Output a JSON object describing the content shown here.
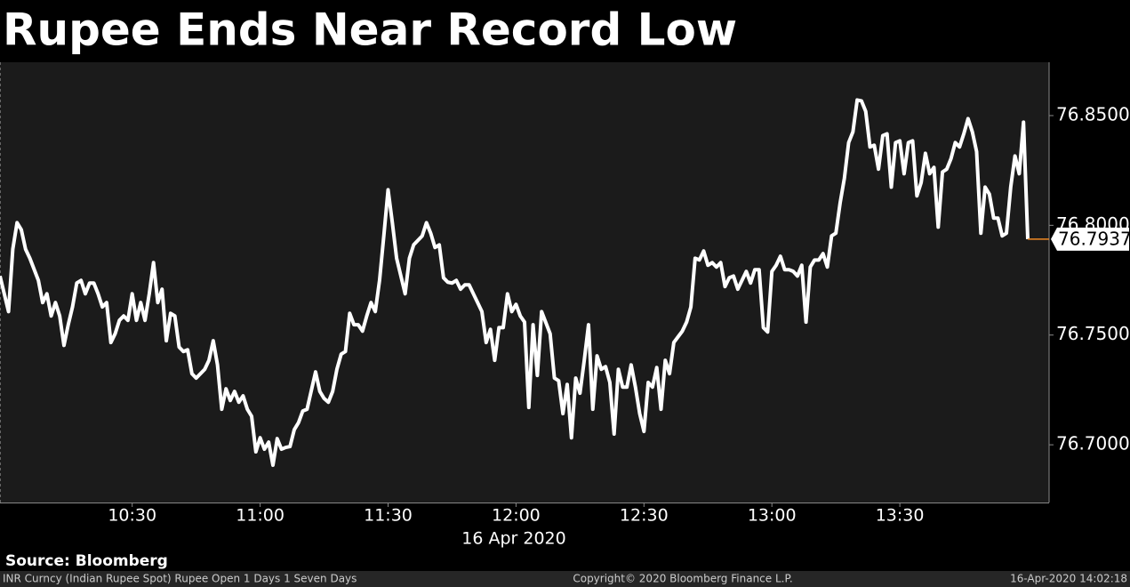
{
  "chart_data": {
    "type": "line",
    "title": "Rupee Ends Near Record Low",
    "xlabel": "16 Apr 2020",
    "source": "Source: Bloomberg",
    "footer": {
      "left": "INR Curncy (Indian Rupee Spot) Rupee Open 1 Days 1 Seven Days",
      "center": "Copyright© 2020 Bloomberg Finance L.P.",
      "right": "16-Apr-2020 14:02:18"
    },
    "color": "#ffffff",
    "last_value_color": "#f08a24",
    "x": [
      "09:59",
      "10:01",
      "10:02",
      "10:03",
      "10:04",
      "10:05",
      "10:06",
      "10:08",
      "10:09",
      "10:10",
      "10:11",
      "10:12",
      "10:13",
      "10:14",
      "10:15",
      "10:16",
      "10:17",
      "10:18",
      "10:19",
      "10:20",
      "10:21",
      "10:22",
      "10:23",
      "10:24",
      "10:25",
      "10:26",
      "10:27",
      "10:28",
      "10:29",
      "10:30",
      "10:31",
      "10:32",
      "10:33",
      "10:34",
      "10:35",
      "10:36",
      "10:37",
      "10:38",
      "10:39",
      "10:40",
      "10:41",
      "10:42",
      "10:43",
      "10:44",
      "10:45",
      "10:47",
      "10:48",
      "10:49",
      "10:50",
      "10:51",
      "10:52",
      "10:53",
      "10:54",
      "10:55",
      "10:56",
      "10:57",
      "10:58",
      "10:59",
      "11:00",
      "11:01",
      "11:02",
      "11:03",
      "11:04",
      "11:05",
      "11:06",
      "11:07",
      "11:08",
      "11:09",
      "11:10",
      "11:11",
      "11:13",
      "11:14",
      "11:15",
      "11:16",
      "11:17",
      "11:18",
      "11:19",
      "11:20",
      "11:21",
      "11:22",
      "11:23",
      "11:24",
      "11:25",
      "11:26",
      "11:27",
      "11:28",
      "11:29",
      "11:30",
      "11:31",
      "11:32",
      "11:33",
      "11:34",
      "11:35",
      "11:36",
      "11:38",
      "11:39",
      "11:40",
      "11:41",
      "11:42",
      "11:43",
      "11:44",
      "11:45",
      "11:46",
      "11:47",
      "11:48",
      "11:49",
      "11:50",
      "11:51",
      "11:52",
      "11:53",
      "11:54",
      "11:55",
      "11:56",
      "11:57",
      "11:58",
      "11:59",
      "12:00",
      "12:01",
      "12:02",
      "12:03",
      "12:04",
      "12:05",
      "12:06",
      "12:08",
      "12:09",
      "12:10",
      "12:11",
      "12:12",
      "12:13",
      "12:14",
      "12:15",
      "12:16",
      "12:17",
      "12:18",
      "12:19",
      "12:20",
      "12:21",
      "12:22",
      "12:23",
      "12:24",
      "12:25",
      "12:26",
      "12:27",
      "12:28",
      "12:29",
      "12:30",
      "12:31",
      "12:32",
      "12:33",
      "12:34",
      "12:35",
      "12:36",
      "12:37",
      "12:39",
      "12:40",
      "12:41",
      "12:42",
      "12:43",
      "12:44",
      "12:45",
      "12:46",
      "12:47",
      "12:48",
      "12:49",
      "12:50",
      "12:51",
      "12:52",
      "12:54",
      "12:55",
      "12:56",
      "12:57",
      "12:58",
      "12:59",
      "13:00",
      "13:01",
      "13:02",
      "13:03",
      "13:04",
      "13:05",
      "13:06",
      "13:07",
      "13:08",
      "13:09",
      "13:10",
      "13:11",
      "13:12",
      "13:13",
      "13:14",
      "13:15",
      "13:16",
      "13:17",
      "13:18",
      "13:19",
      "13:20",
      "13:21",
      "13:22",
      "13:23",
      "13:24",
      "13:25",
      "13:26",
      "13:27",
      "13:28",
      "13:29",
      "13:30",
      "13:31",
      "13:32",
      "13:33",
      "13:34",
      "13:35",
      "13:36",
      "13:37",
      "13:38",
      "13:39",
      "13:40",
      "13:41",
      "13:42",
      "13:43",
      "13:44",
      "13:45",
      "13:46",
      "13:47",
      "13:48",
      "13:49",
      "13:50",
      "13:51",
      "13:52",
      "13:53",
      "13:54",
      "13:55",
      "13:56",
      "13:57",
      "13:58",
      "13:59",
      "14:00"
    ],
    "values": [
      76.7769,
      76.7607,
      76.7891,
      76.8012,
      76.798,
      76.7891,
      76.785,
      76.7749,
      76.7648,
      76.7688,
      76.7587,
      76.7648,
      76.7587,
      76.7453,
      76.7547,
      76.7628,
      76.7737,
      76.7749,
      76.7688,
      76.7737,
      76.7737,
      76.7688,
      76.7628,
      76.7648,
      76.7466,
      76.7506,
      76.7567,
      76.7587,
      76.7567,
      76.7688,
      76.7567,
      76.7648,
      76.7567,
      76.7688,
      76.783,
      76.7648,
      76.7709,
      76.7474,
      76.7599,
      76.7587,
      76.7445,
      76.7425,
      76.7433,
      76.7324,
      76.7304,
      76.7344,
      76.7385,
      76.7474,
      76.7364,
      76.7162,
      76.7255,
      76.7202,
      76.7243,
      76.7194,
      76.7223,
      76.7162,
      76.713,
      76.6968,
      76.7032,
      76.698,
      76.7012,
      76.6907,
      76.7028,
      76.698,
      76.6988,
      76.6992,
      76.7069,
      76.7101,
      76.7154,
      76.7162,
      76.7332,
      76.7243,
      76.7211,
      76.7194,
      76.7243,
      76.7344,
      76.7413,
      76.7425,
      76.7599,
      76.7547,
      76.7547,
      76.7518,
      76.7587,
      76.7648,
      76.7607,
      76.7749,
      76.7952,
      76.8162,
      76.8012,
      76.785,
      76.7769,
      76.7688,
      76.785,
      76.7911,
      76.7952,
      76.8012,
      76.7964,
      76.7899,
      76.7911,
      76.7761,
      76.7741,
      76.7737,
      76.7749,
      76.7709,
      76.7729,
      76.7729,
      76.7688,
      76.7648,
      76.7607,
      76.7466,
      76.7526,
      76.7385,
      76.7534,
      76.7534,
      76.7688,
      76.7607,
      76.764,
      76.7587,
      76.7559,
      76.717,
      76.7547,
      76.7316,
      76.7607,
      76.7506,
      76.7304,
      76.7292,
      76.7142,
      76.7275,
      76.7032,
      76.7304,
      76.7235,
      76.7385,
      76.7547,
      76.7162,
      76.7405,
      76.7344,
      76.7356,
      76.7284,
      76.7049,
      76.7344,
      76.7263,
      76.7263,
      76.7364,
      76.7263,
      76.7142,
      76.7061,
      76.7284,
      76.7263,
      76.7352,
      76.7162,
      76.7385,
      76.7324,
      76.7466,
      76.7518,
      76.7559,
      76.7628,
      76.785,
      76.7842,
      76.7883,
      76.7818,
      76.783,
      76.781,
      76.783,
      76.7721,
      76.7761,
      76.7769,
      76.7709,
      76.779,
      76.7737,
      76.7798,
      76.7798,
      76.7534,
      76.7514,
      76.779,
      76.7818,
      76.7859,
      76.7798,
      76.7798,
      76.779,
      76.7769,
      76.7818,
      76.7559,
      76.781,
      76.7842,
      76.7842,
      76.7871,
      76.781,
      76.7952,
      76.7964,
      76.8102,
      76.8215,
      76.8377,
      76.8426,
      76.8571,
      76.8567,
      76.8519,
      76.8357,
      76.8365,
      76.8256,
      76.8409,
      76.8417,
      76.8174,
      76.8377,
      76.8385,
      76.8235,
      76.8377,
      76.8385,
      76.8134,
      76.8195,
      76.8328,
      76.8235,
      76.8264,
      76.7992,
      76.8243,
      76.8256,
      76.8304,
      76.8377,
      76.8357,
      76.8417,
      76.8486,
      76.8426,
      76.8336,
      76.7964,
      76.8174,
      76.8142,
      76.8033,
      76.8033,
      76.7952,
      76.7964,
      76.8174,
      76.8316,
      76.8235,
      76.847,
      76.7937
    ],
    "xlim": [
      "09:59",
      "14:05"
    ],
    "xticks": [
      "10:30",
      "11:00",
      "11:30",
      "12:00",
      "12:30",
      "13:00",
      "13:30"
    ],
    "ylim": [
      76.6737,
      76.8743
    ],
    "yticks": [
      {
        "value": 76.7,
        "label": "76.7000"
      },
      {
        "value": 76.75,
        "label": "76.7500"
      },
      {
        "value": 76.8,
        "label": "76.8000"
      },
      {
        "value": 76.85,
        "label": "76.8500"
      }
    ]
  }
}
